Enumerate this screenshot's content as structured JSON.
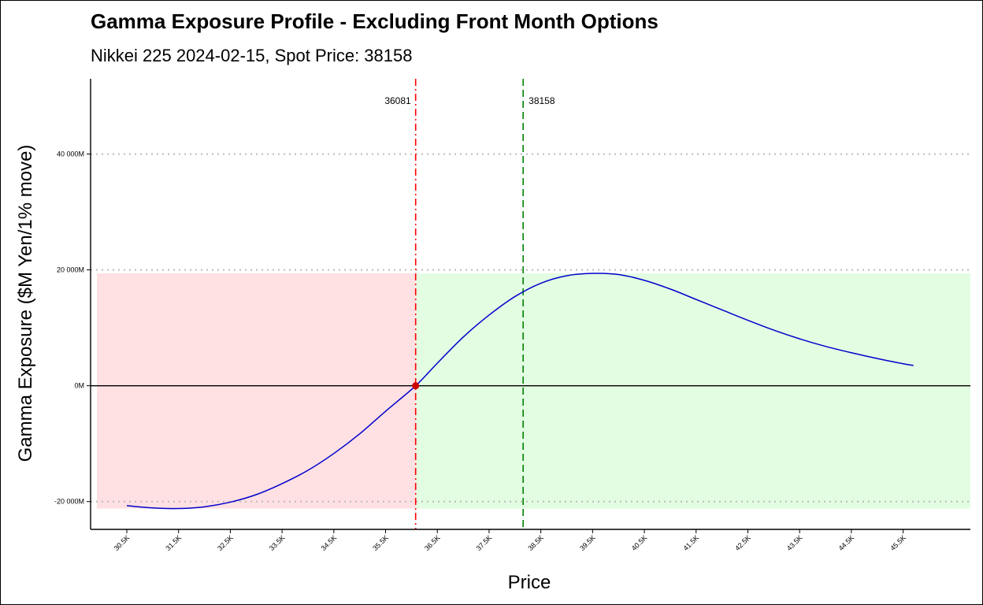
{
  "chart_data": {
    "type": "line",
    "title": "Gamma Exposure Profile - Excluding Front Month Options",
    "subtitle": "Nikkei 225 2024-02-15, Spot Price: 38158",
    "xlabel": "Price",
    "ylabel": "Gamma Exposure ($M Yen/1% move)",
    "xlim": [
      29800,
      46800
    ],
    "ylim": [
      -24800,
      53000
    ],
    "x_ticks": [
      30500,
      31500,
      32500,
      33500,
      34500,
      35500,
      36500,
      37500,
      38500,
      39500,
      40500,
      41500,
      42500,
      43500,
      44500,
      45500
    ],
    "x_tick_labels": [
      "30.5K",
      "31.5K",
      "32.5K",
      "33.5K",
      "34.5K",
      "35.5K",
      "36.5K",
      "37.5K",
      "38.5K",
      "39.5K",
      "40.5K",
      "41.5K",
      "42.5K",
      "43.5K",
      "44.5K",
      "45.5K"
    ],
    "y_ticks": [
      -20000,
      0,
      20000,
      40000
    ],
    "y_tick_labels": [
      "-20 000M",
      "0M",
      "20 000M",
      "40 000M"
    ],
    "grid": "horizontal dotted",
    "series": [
      {
        "color": "#0000cc",
        "x": [
          30500,
          31000,
          31500,
          32000,
          32500,
          33000,
          33500,
          34000,
          34500,
          35000,
          35500,
          36081,
          36500,
          37000,
          37500,
          38000,
          38500,
          39000,
          39500,
          40000,
          40500,
          41000,
          41500,
          42000,
          42500,
          43000,
          43500,
          44000,
          44500,
          45000,
          45500,
          45700
        ],
        "y": [
          -20700,
          -21100,
          -21200,
          -20900,
          -20100,
          -18800,
          -16900,
          -14600,
          -11700,
          -8300,
          -4400,
          0,
          3900,
          8400,
          12200,
          15400,
          17700,
          19000,
          19400,
          19200,
          18200,
          16700,
          14900,
          13100,
          11300,
          9600,
          8100,
          6800,
          5700,
          4700,
          3800,
          3500
        ]
      }
    ],
    "zero_gamma": {
      "value": 36081,
      "label": "36081",
      "color": "#ff0000"
    },
    "spot": {
      "value": 38158,
      "label": "38158",
      "color": "#008000"
    },
    "colors": {
      "curve": "#0000cc",
      "negative_region": "#ffe0e3",
      "positive_region": "#e2fde2",
      "grid": "#bbbbbb",
      "zero_point": "#cc0000"
    }
  }
}
